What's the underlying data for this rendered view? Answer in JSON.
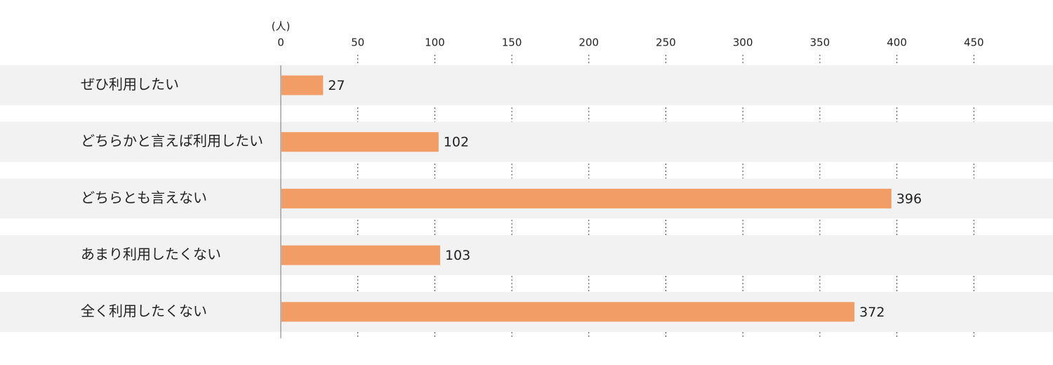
{
  "chart_data": {
    "type": "barh",
    "xlabel": "(人)",
    "categories": [
      "ぜひ利用したい",
      "どちらかと言えば利用したい",
      "どちらとも言えない",
      "あまり利用したくない",
      "全く利用したくない"
    ],
    "values": [
      27,
      102,
      396,
      103,
      372
    ],
    "color": "#f29d65",
    "xlim": [
      0,
      500
    ],
    "xticks": [
      0,
      50,
      100,
      150,
      200,
      250,
      300,
      350,
      400,
      450
    ],
    "grid": true
  }
}
